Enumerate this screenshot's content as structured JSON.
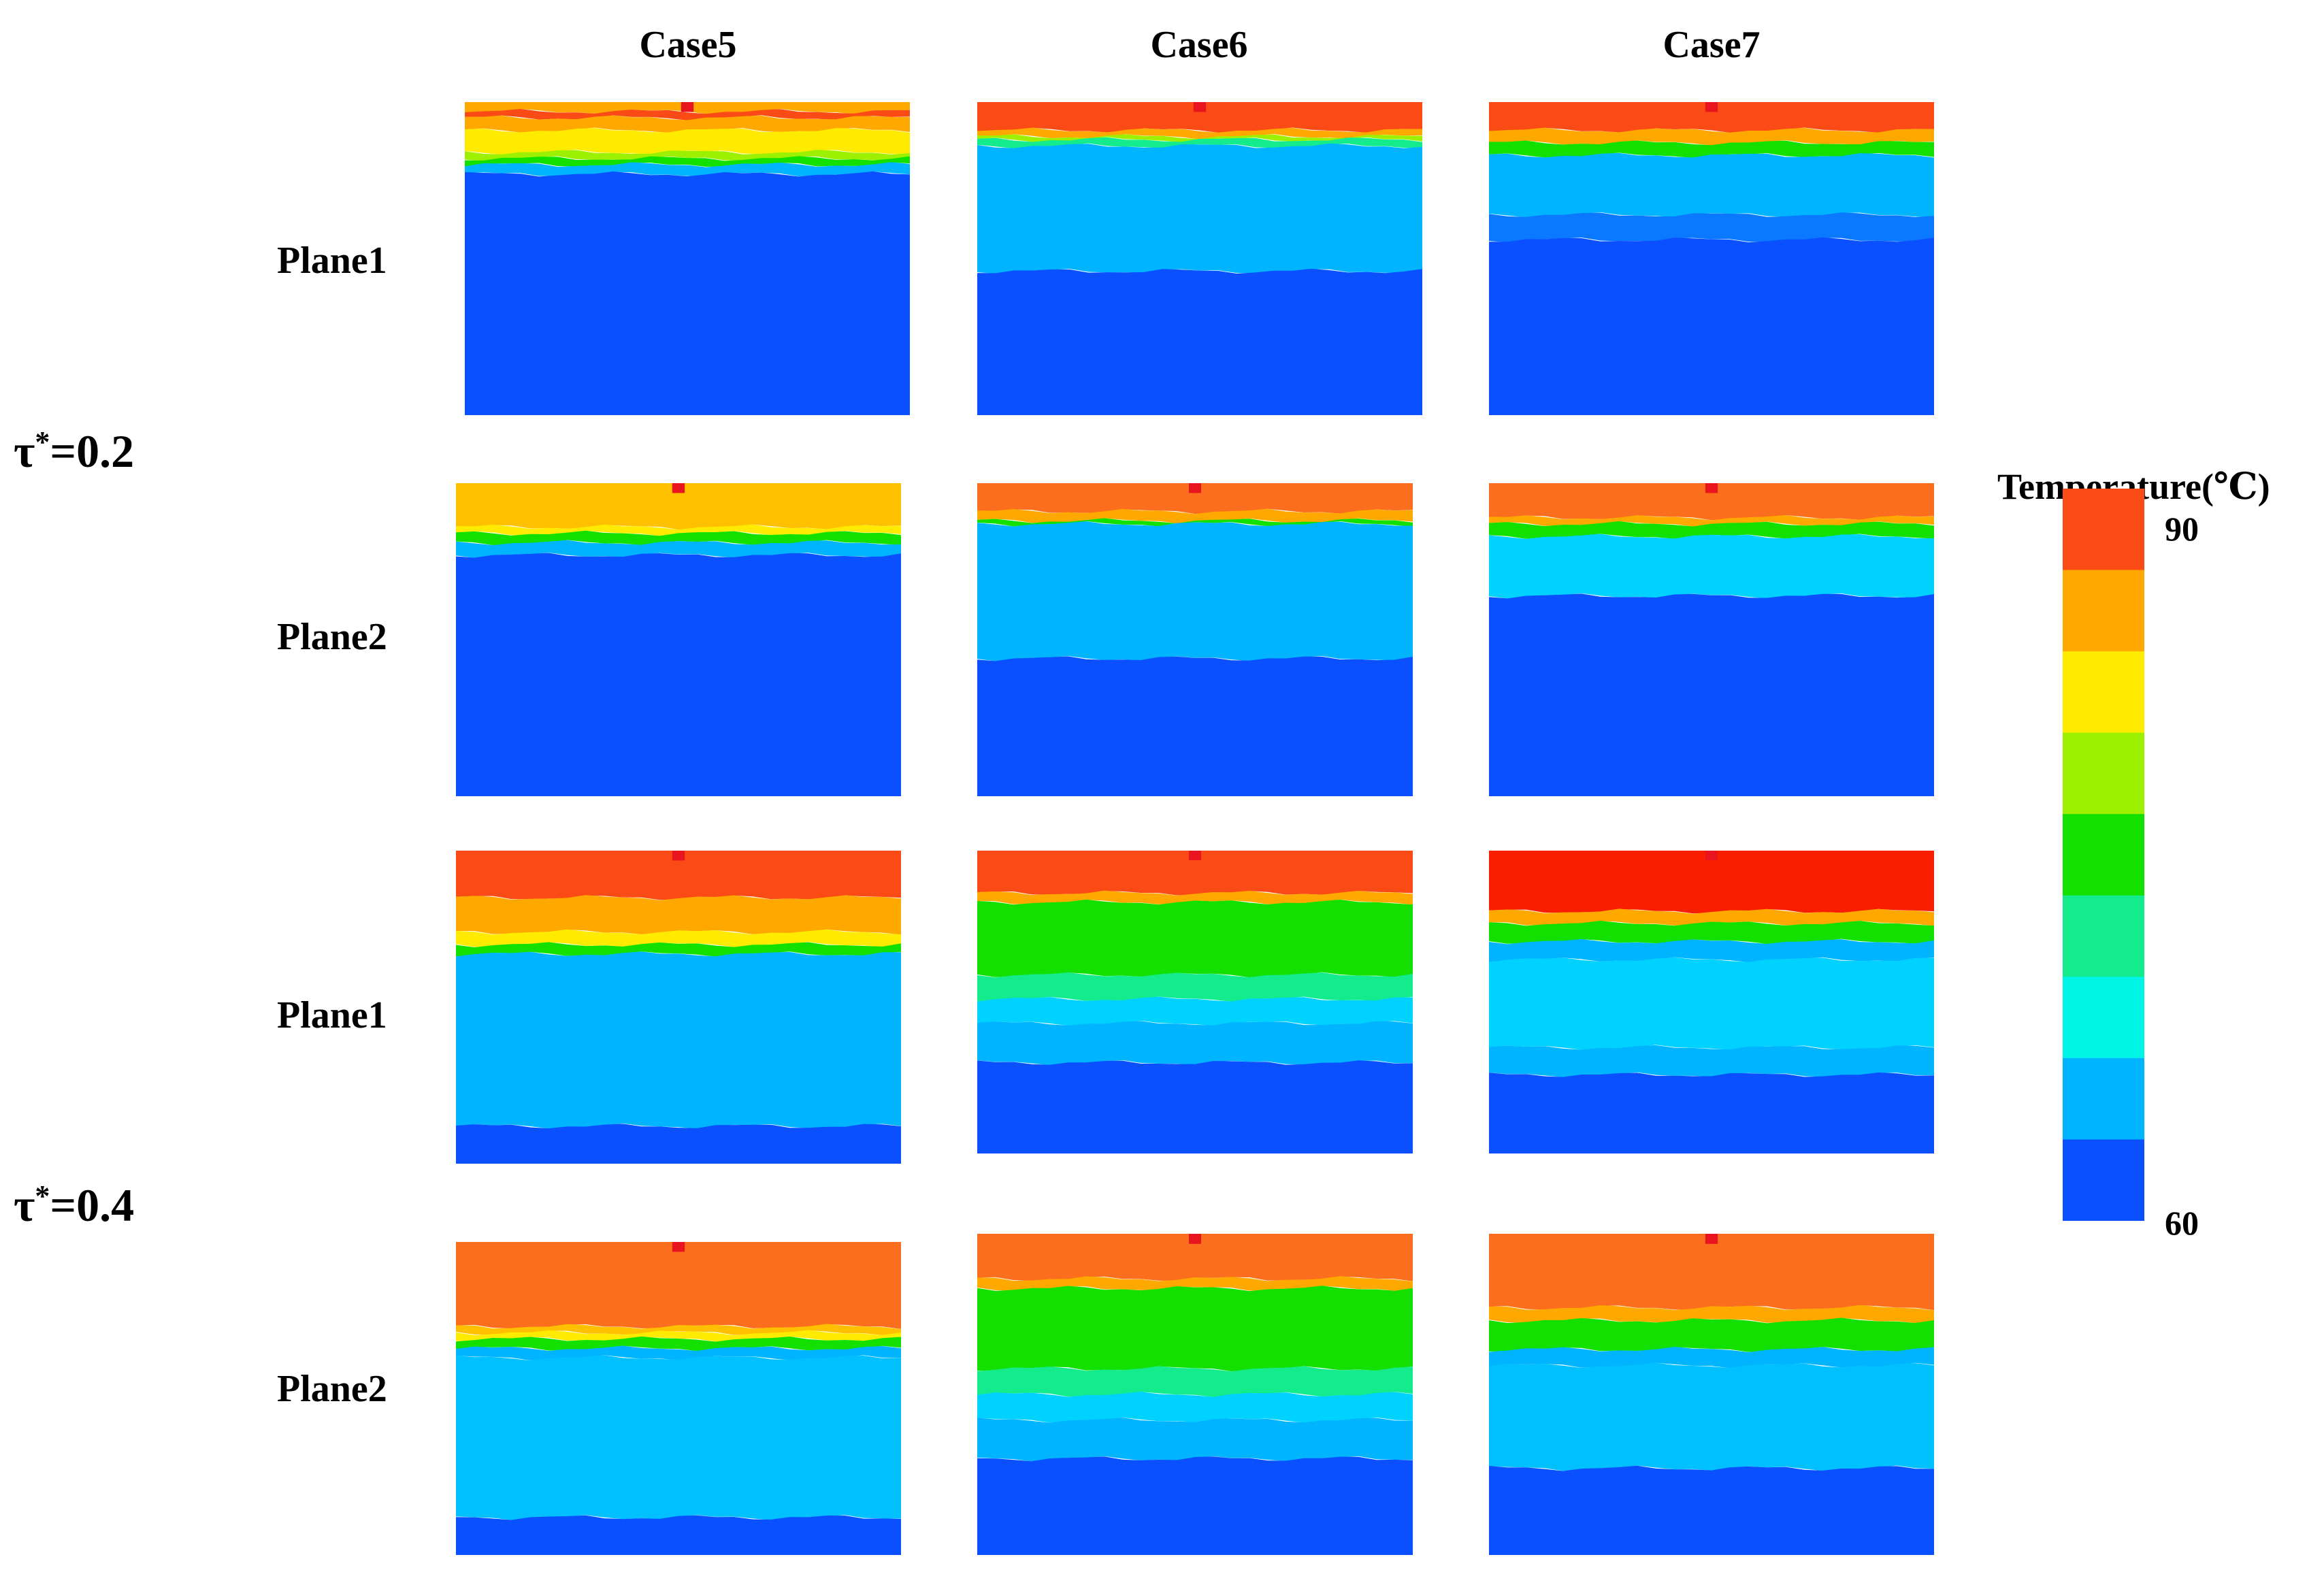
{
  "columns": [
    "Case5",
    "Case6",
    "Case7"
  ],
  "row_labels": [
    "Plane1",
    "Plane2",
    "Plane1",
    "Plane2"
  ],
  "time_labels": [
    {
      "symbol": "τ",
      "sup": "*",
      "value": "=0.2"
    },
    {
      "symbol": "τ",
      "sup": "*",
      "value": "=0.4"
    }
  ],
  "colorbar": {
    "title": "Temperature(℃)",
    "max_label": "90",
    "min_label": "60",
    "max": 90,
    "min": 60,
    "levels": [
      "#fa4b16",
      "#ffa800",
      "#ffeb00",
      "#9cf000",
      "#14e000",
      "#13eb8c",
      "#00f5e6",
      "#00b4ff",
      "#0a50ff"
    ]
  },
  "panels": [
    {
      "row": 1,
      "col": "Case5",
      "plane": "Plane1",
      "time": "0.2",
      "bands": [
        {
          "c": "#ffa800",
          "to": 0.03
        },
        {
          "c": "#fa4b16",
          "to": 0.05
        },
        {
          "c": "#ffa800",
          "to": 0.09
        },
        {
          "c": "#ffeb00",
          "to": 0.16
        },
        {
          "c": "#9cf000",
          "to": 0.18
        },
        {
          "c": "#14e000",
          "to": 0.2
        },
        {
          "c": "#00b4ff",
          "to": 0.23
        },
        {
          "c": "#0a50ff",
          "to": 1
        }
      ]
    },
    {
      "row": 1,
      "col": "Case6",
      "plane": "Plane1",
      "time": "0.2",
      "bands": [
        {
          "c": "#fa4b16",
          "to": 0.09
        },
        {
          "c": "#ffa800",
          "to": 0.11
        },
        {
          "c": "#9cf000",
          "to": 0.12
        },
        {
          "c": "#13eb8c",
          "to": 0.14
        },
        {
          "c": "#00b4ff",
          "to": 0.54
        },
        {
          "c": "#0a50ff",
          "to": 1
        }
      ]
    },
    {
      "row": 1,
      "col": "Case7",
      "plane": "Plane1",
      "time": "0.2",
      "bands": [
        {
          "c": "#fa4b16",
          "to": 0.09
        },
        {
          "c": "#ffa800",
          "to": 0.13
        },
        {
          "c": "#14e000",
          "to": 0.17
        },
        {
          "c": "#00b4ff",
          "to": 0.36
        },
        {
          "c": "#0a78ff",
          "to": 0.44
        },
        {
          "c": "#0a50ff",
          "to": 1
        }
      ]
    },
    {
      "row": 2,
      "col": "Case5",
      "plane": "Plane2",
      "time": "0.2",
      "bands": [
        {
          "c": "#ffc000",
          "to": 0.14
        },
        {
          "c": "#ffeb00",
          "to": 0.16
        },
        {
          "c": "#14e000",
          "to": 0.19
        },
        {
          "c": "#00b4ff",
          "to": 0.23
        },
        {
          "c": "#0a50ff",
          "to": 1
        }
      ]
    },
    {
      "row": 2,
      "col": "Case6",
      "plane": "Plane2",
      "time": "0.2",
      "bands": [
        {
          "c": "#fa6e1e",
          "to": 0.09
        },
        {
          "c": "#ffa800",
          "to": 0.12
        },
        {
          "c": "#14e000",
          "to": 0.13
        },
        {
          "c": "#00b4ff",
          "to": 0.56
        },
        {
          "c": "#0a50ff",
          "to": 1
        }
      ]
    },
    {
      "row": 2,
      "col": "Case7",
      "plane": "Plane2",
      "time": "0.2",
      "bands": [
        {
          "c": "#fa6e1e",
          "to": 0.11
        },
        {
          "c": "#ffa800",
          "to": 0.13
        },
        {
          "c": "#14e000",
          "to": 0.17
        },
        {
          "c": "#00d2ff",
          "to": 0.36
        },
        {
          "c": "#0a50ff",
          "to": 1
        }
      ]
    },
    {
      "row": 3,
      "col": "Case5",
      "plane": "Plane1",
      "time": "0.4",
      "bands": [
        {
          "c": "#fa4b16",
          "to": 0.15
        },
        {
          "c": "#ffa800",
          "to": 0.26
        },
        {
          "c": "#ffeb00",
          "to": 0.3
        },
        {
          "c": "#14e000",
          "to": 0.33
        },
        {
          "c": "#00b4ff",
          "to": 0.88
        },
        {
          "c": "#0a50ff",
          "to": 1
        }
      ]
    },
    {
      "row": 3,
      "col": "Case6",
      "plane": "Plane1",
      "time": "0.4",
      "bands": [
        {
          "c": "#fa4b16",
          "to": 0.14
        },
        {
          "c": "#ffa800",
          "to": 0.17
        },
        {
          "c": "#14e000",
          "to": 0.41
        },
        {
          "c": "#13eb8c",
          "to": 0.49
        },
        {
          "c": "#00d2ff",
          "to": 0.57
        },
        {
          "c": "#00b4ff",
          "to": 0.7
        },
        {
          "c": "#0a50ff",
          "to": 1
        }
      ]
    },
    {
      "row": 3,
      "col": "Case7",
      "plane": "Plane1",
      "time": "0.4",
      "bands": [
        {
          "c": "#fa1e00",
          "to": 0.2
        },
        {
          "c": "#ffa800",
          "to": 0.24
        },
        {
          "c": "#14e000",
          "to": 0.3
        },
        {
          "c": "#00b4ff",
          "to": 0.36
        },
        {
          "c": "#00d2ff",
          "to": 0.65
        },
        {
          "c": "#00b4ff",
          "to": 0.74
        },
        {
          "c": "#0a50ff",
          "to": 1
        }
      ]
    },
    {
      "row": 4,
      "col": "Case5",
      "plane": "Plane2",
      "time": "0.4",
      "bands": [
        {
          "c": "#fa6e1e",
          "to": 0.27
        },
        {
          "c": "#ffc000",
          "to": 0.29
        },
        {
          "c": "#ffeb00",
          "to": 0.31
        },
        {
          "c": "#14e000",
          "to": 0.34
        },
        {
          "c": "#00b4ff",
          "to": 0.37
        },
        {
          "c": "#00c0ff",
          "to": 0.88
        },
        {
          "c": "#0a50ff",
          "to": 1
        }
      ]
    },
    {
      "row": 4,
      "col": "Case6",
      "plane": "Plane2",
      "time": "0.4",
      "bands": [
        {
          "c": "#fa6e1e",
          "to": 0.14
        },
        {
          "c": "#ffa800",
          "to": 0.17
        },
        {
          "c": "#14e000",
          "to": 0.42
        },
        {
          "c": "#13eb8c",
          "to": 0.5
        },
        {
          "c": "#00d2ff",
          "to": 0.58
        },
        {
          "c": "#00b4ff",
          "to": 0.7
        },
        {
          "c": "#0a50ff",
          "to": 1
        }
      ]
    },
    {
      "row": 4,
      "col": "Case7",
      "plane": "Plane2",
      "time": "0.4",
      "bands": [
        {
          "c": "#fa6e1e",
          "to": 0.23
        },
        {
          "c": "#ffa800",
          "to": 0.27
        },
        {
          "c": "#14e000",
          "to": 0.36
        },
        {
          "c": "#00b4ff",
          "to": 0.41
        },
        {
          "c": "#00c0ff",
          "to": 0.73
        },
        {
          "c": "#0a50ff",
          "to": 1
        }
      ]
    }
  ]
}
